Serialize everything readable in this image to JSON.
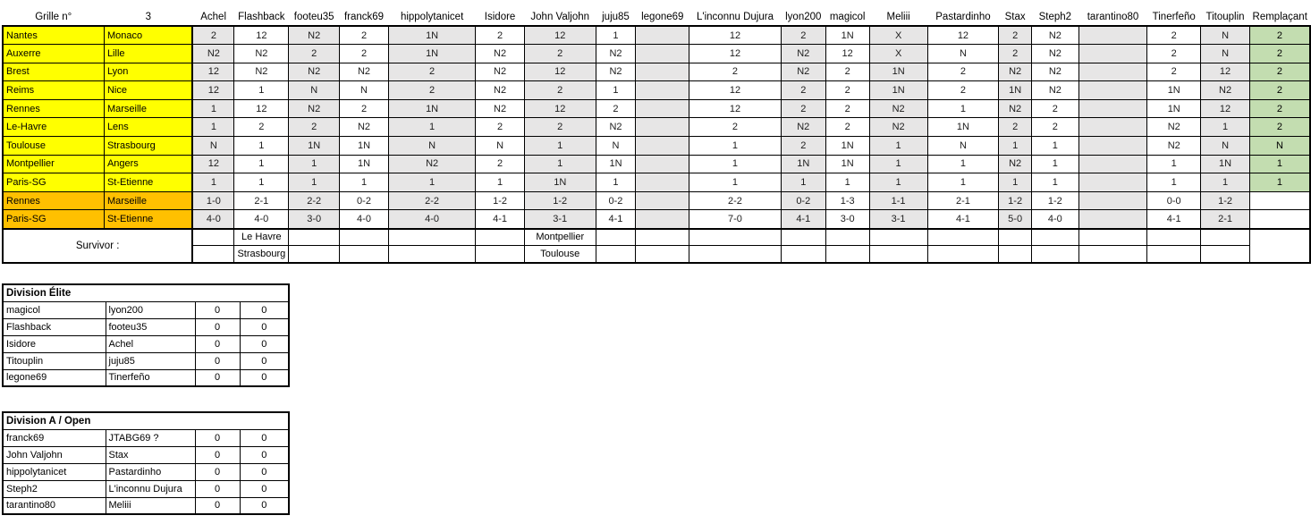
{
  "colors": {
    "fixture_row_bg": "#FFFF00",
    "result_row_bg": "#FFC000",
    "shaded_column_bg": "#E7E6E6",
    "replacement_column_bg": "#C3DDB0",
    "grid_border": "#000000"
  },
  "grid": {
    "title_label": "Grille n°",
    "grid_number": "3",
    "replacement_label": "Remplaçant",
    "players": [
      "Achel",
      "Flashback",
      "footeu35",
      "franck69",
      "hippolytanicet",
      "Isidore",
      "John Valjohn",
      "juju85",
      "legone69",
      "L'inconnu Dujura",
      "lyon200",
      "magicol",
      "Meliii",
      "Pastardinho",
      "Stax",
      "Steph2",
      "tarantino80",
      "Tinerfeño",
      "Titouplin"
    ],
    "rows": [
      {
        "home": "Nantes",
        "away": "Monaco",
        "kind": "prediction",
        "cells": [
          "2",
          "12",
          "N2",
          "2",
          "1N",
          "2",
          "12",
          "1",
          "",
          "12",
          "2",
          "1N",
          "X",
          "12",
          "2",
          "N2",
          "",
          "2",
          "N"
        ],
        "replacement": "2"
      },
      {
        "home": "Auxerre",
        "away": "Lille",
        "kind": "prediction",
        "cells": [
          "N2",
          "N2",
          "2",
          "2",
          "1N",
          "N2",
          "2",
          "N2",
          "",
          "12",
          "N2",
          "12",
          "X",
          "N",
          "2",
          "N2",
          "",
          "2",
          "N"
        ],
        "replacement": "2"
      },
      {
        "home": "Brest",
        "away": "Lyon",
        "kind": "prediction",
        "cells": [
          "12",
          "N2",
          "N2",
          "N2",
          "2",
          "N2",
          "12",
          "N2",
          "",
          "2",
          "N2",
          "2",
          "1N",
          "2",
          "N2",
          "N2",
          "",
          "2",
          "12"
        ],
        "replacement": "2"
      },
      {
        "home": "Reims",
        "away": "Nice",
        "kind": "prediction",
        "cells": [
          "12",
          "1",
          "N",
          "N",
          "2",
          "N2",
          "2",
          "1",
          "",
          "12",
          "2",
          "2",
          "1N",
          "2",
          "1N",
          "N2",
          "",
          "1N",
          "N2"
        ],
        "replacement": "2"
      },
      {
        "home": "Rennes",
        "away": "Marseille",
        "kind": "prediction",
        "cells": [
          "1",
          "12",
          "N2",
          "2",
          "1N",
          "N2",
          "12",
          "2",
          "",
          "12",
          "2",
          "2",
          "N2",
          "1",
          "N2",
          "2",
          "",
          "1N",
          "12"
        ],
        "replacement": "2"
      },
      {
        "home": "Le-Havre",
        "away": "Lens",
        "kind": "prediction",
        "cells": [
          "1",
          "2",
          "2",
          "N2",
          "1",
          "2",
          "2",
          "N2",
          "",
          "2",
          "N2",
          "2",
          "N2",
          "1N",
          "2",
          "2",
          "",
          "N2",
          "1"
        ],
        "replacement": "2"
      },
      {
        "home": "Toulouse",
        "away": "Strasbourg",
        "kind": "prediction",
        "cells": [
          "N",
          "1",
          "1N",
          "1N",
          "N",
          "N",
          "1",
          "N",
          "",
          "1",
          "2",
          "1N",
          "1",
          "N",
          "1",
          "1",
          "",
          "N2",
          "N"
        ],
        "replacement": "N"
      },
      {
        "home": "Montpellier",
        "away": "Angers",
        "kind": "prediction",
        "cells": [
          "12",
          "1",
          "1",
          "1N",
          "N2",
          "2",
          "1",
          "1N",
          "",
          "1",
          "1N",
          "1N",
          "1",
          "1",
          "N2",
          "1",
          "",
          "1",
          "1N"
        ],
        "replacement": "1"
      },
      {
        "home": "Paris-SG",
        "away": "St-Etienne",
        "kind": "prediction",
        "cells": [
          "1",
          "1",
          "1",
          "1",
          "1",
          "1",
          "1N",
          "1",
          "",
          "1",
          "1",
          "1",
          "1",
          "1",
          "1",
          "1",
          "",
          "1",
          "1"
        ],
        "replacement": "1"
      },
      {
        "home": "Rennes",
        "away": "Marseille",
        "kind": "result",
        "cells": [
          "1-0",
          "2-1",
          "2-2",
          "0-2",
          "2-2",
          "1-2",
          "1-2",
          "0-2",
          "",
          "2-2",
          "0-2",
          "1-3",
          "1-1",
          "2-1",
          "1-2",
          "1-2",
          "",
          "0-0",
          "1-2"
        ],
        "replacement": ""
      },
      {
        "home": "Paris-SG",
        "away": "St-Etienne",
        "kind": "result",
        "cells": [
          "4-0",
          "4-0",
          "3-0",
          "4-0",
          "4-0",
          "4-1",
          "3-1",
          "4-1",
          "",
          "7-0",
          "4-1",
          "3-0",
          "3-1",
          "4-1",
          "5-0",
          "4-0",
          "",
          "4-1",
          "2-1"
        ],
        "replacement": ""
      }
    ],
    "survivor": {
      "label": "Survivor :",
      "top_cells": [
        "",
        "Le Havre",
        "",
        "",
        "",
        "",
        "Montpellier",
        "",
        "",
        "",
        "",
        "",
        "",
        "",
        "",
        "",
        "",
        "",
        ""
      ],
      "bottom_cells": [
        "",
        "Strasbourg",
        "",
        "",
        "",
        "",
        "Toulouse",
        "",
        "",
        "",
        "",
        "",
        "",
        "",
        "",
        "",
        "",
        "",
        ""
      ]
    }
  },
  "divisions": [
    {
      "title": "Division Élite",
      "rows": [
        [
          "magicol",
          "lyon200",
          "0",
          "0"
        ],
        [
          "Flashback",
          "footeu35",
          "0",
          "0"
        ],
        [
          "Isidore",
          "Achel",
          "0",
          "0"
        ],
        [
          "Titouplin",
          "juju85",
          "0",
          "0"
        ],
        [
          "legone69",
          "Tinerfeño",
          "0",
          "0"
        ]
      ]
    },
    {
      "title": "Division A / Open",
      "rows": [
        [
          "franck69",
          "JTABG69 ?",
          "0",
          "0"
        ],
        [
          "John Valjohn",
          "Stax",
          "0",
          "0"
        ],
        [
          "hippolytanicet",
          "Pastardinho",
          "0",
          "0"
        ],
        [
          "Steph2",
          "L'inconnu Dujura",
          "0",
          "0"
        ],
        [
          "tarantino80",
          "Meliii",
          "0",
          "0"
        ]
      ]
    }
  ]
}
